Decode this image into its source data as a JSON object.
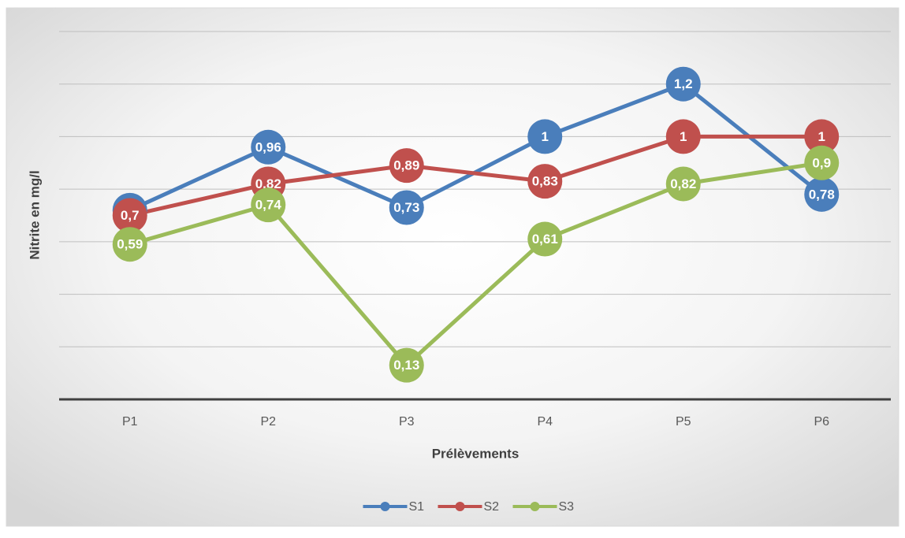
{
  "chart_data": {
    "type": "line",
    "y_label": "Nitrite en mg/l",
    "x_label": "Prélèvements",
    "categories": [
      "P1",
      "P2",
      "P3",
      "P4",
      "P5",
      "P6"
    ],
    "series": [
      {
        "name": "S1",
        "color": "#4a7ebb",
        "values": [
          0.72,
          0.96,
          0.73,
          1,
          1.2,
          0.78
        ],
        "value_labels": [
          "0,72",
          "0,96",
          "0,73",
          "1",
          "1,2",
          "0,78"
        ]
      },
      {
        "name": "S2",
        "color": "#c0504d",
        "values": [
          0.7,
          0.82,
          0.89,
          0.83,
          1,
          1
        ],
        "value_labels": [
          "0,7",
          "0,82",
          "0,89",
          "0,83",
          "1",
          "1"
        ]
      },
      {
        "name": "S3",
        "color": "#9bbb59",
        "values": [
          0.59,
          0.74,
          0.13,
          0.61,
          0.82,
          0.9
        ],
        "value_labels": [
          "0,59",
          "0,74",
          "0,13",
          "0,61",
          "0,82",
          "0,9"
        ]
      }
    ],
    "ylim": [
      0,
      1.4
    ],
    "yticks": [
      0,
      0.2,
      0.4,
      0.6,
      0.8,
      1,
      1.2,
      1.4
    ],
    "grid": true,
    "legend": "bottom"
  }
}
